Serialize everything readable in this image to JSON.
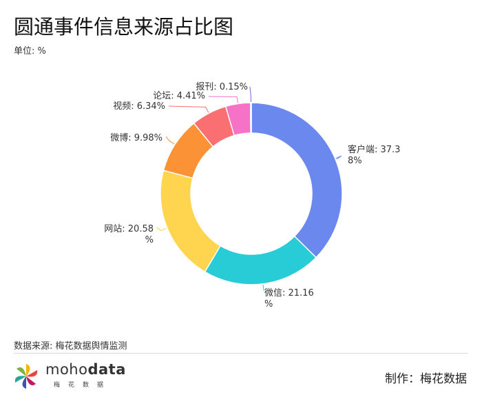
{
  "title": "圆通事件信息来源占比图",
  "unit": "单位: %",
  "source": "数据来源: 梅花数据舆情监测",
  "logo": {
    "name_part1": "moho",
    "name_part2": "data",
    "sub": "梅花数据"
  },
  "credit": "制作：梅花数据",
  "chart_data": {
    "type": "pie",
    "variant": "donut",
    "categories": [
      "客户端",
      "微信",
      "网站",
      "微博",
      "视频",
      "论坛",
      "报刊"
    ],
    "values": [
      37.38,
      21.16,
      20.58,
      9.98,
      6.34,
      4.41,
      0.15
    ],
    "labels": [
      [
        "客户端: 37.3",
        "8%"
      ],
      [
        "微信: 21.16",
        "%"
      ],
      [
        "网站: 20.58",
        "%"
      ],
      [
        "微博: 9.98%"
      ],
      [
        "视频: 6.34%"
      ],
      [
        "论坛: 4.41%"
      ],
      [
        "报刊: 0.15%"
      ]
    ],
    "colors": [
      "#6b88ee",
      "#27ccd6",
      "#ffd54f",
      "#fb9235",
      "#f96f72",
      "#f572c6",
      "#8a5cd0"
    ],
    "legend": "none"
  }
}
